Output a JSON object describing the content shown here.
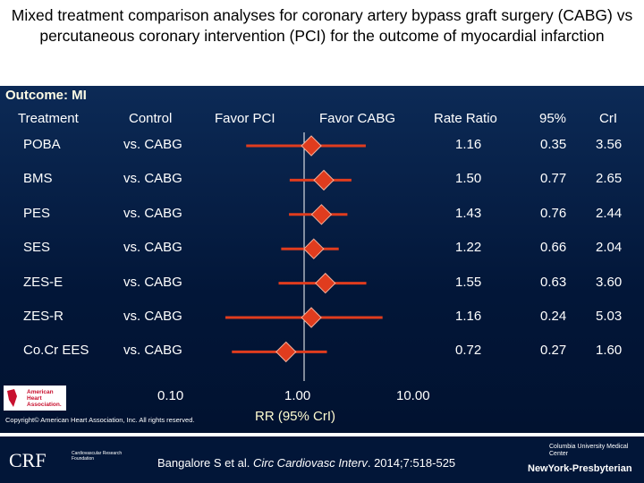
{
  "title": "Mixed treatment comparison analyses for coronary artery bypass graft surgery (CABG) vs percutaneous coronary intervention (PCI) for the outcome of myocardial infarction",
  "outcome_label": "Outcome: MI",
  "headers": {
    "treatment": "Treatment",
    "control": "Control",
    "favor_pci": "Favor PCI",
    "favor_cabg": "Favor CABG",
    "rate_ratio": "Rate Ratio",
    "ci_low": "95%",
    "ci_high": "CrI"
  },
  "chart_data": {
    "type": "forest",
    "x_scale": "log",
    "xlim": [
      0.1,
      10
    ],
    "reference_line": 1.0,
    "xlabel": "RR (95% CrI)",
    "ticks": [
      "0.10",
      "1.00",
      "10.00"
    ],
    "colors": {
      "marker": "#e03c1e",
      "text": "#ffffff",
      "background": "#021638"
    },
    "rows": [
      {
        "treatment": "POBA",
        "control": "vs. CABG",
        "rr": 1.16,
        "rr_label": "1.16",
        "lo": 0.35,
        "lo_label": "0.35",
        "hi": 3.56,
        "hi_label": "3.56"
      },
      {
        "treatment": "BMS",
        "control": "vs. CABG",
        "rr": 1.5,
        "rr_label": "1.50",
        "lo": 0.77,
        "lo_label": "0.77",
        "hi": 2.65,
        "hi_label": "2.65"
      },
      {
        "treatment": "PES",
        "control": "vs. CABG",
        "rr": 1.43,
        "rr_label": "1.43",
        "lo": 0.76,
        "lo_label": "0.76",
        "hi": 2.44,
        "hi_label": "2.44"
      },
      {
        "treatment": "SES",
        "control": "vs. CABG",
        "rr": 1.22,
        "rr_label": "1.22",
        "lo": 0.66,
        "lo_label": "0.66",
        "hi": 2.04,
        "hi_label": "2.04"
      },
      {
        "treatment": "ZES-E",
        "control": "vs. CABG",
        "rr": 1.55,
        "rr_label": "1.55",
        "lo": 0.63,
        "lo_label": "0.63",
        "hi": 3.6,
        "hi_label": "3.60"
      },
      {
        "treatment": "ZES-R",
        "control": "vs. CABG",
        "rr": 1.16,
        "rr_label": "1.16",
        "lo": 0.24,
        "lo_label": "0.24",
        "hi": 5.03,
        "hi_label": "5.03"
      },
      {
        "treatment": "Co.Cr EES",
        "control": "vs. CABG",
        "rr": 0.72,
        "rr_label": "0.72",
        "lo": 0.27,
        "lo_label": "0.27",
        "hi": 1.6,
        "hi_label": "1.60"
      }
    ]
  },
  "copyright": "Copyright© American Heart Association, Inc. All rights reserved.",
  "citation_prefix": "Bangalore S et al. ",
  "citation_journal": "Circ Cardiovasc Interv",
  "citation_suffix": ". 2014;7:518-525",
  "logos": {
    "aha": "American Heart Association",
    "crf": "CRF",
    "crf_sub": "Cardiovascular Research Foundation",
    "columbia": "Columbia University Medical Center",
    "nyp": "NewYork-Presbyterian"
  }
}
